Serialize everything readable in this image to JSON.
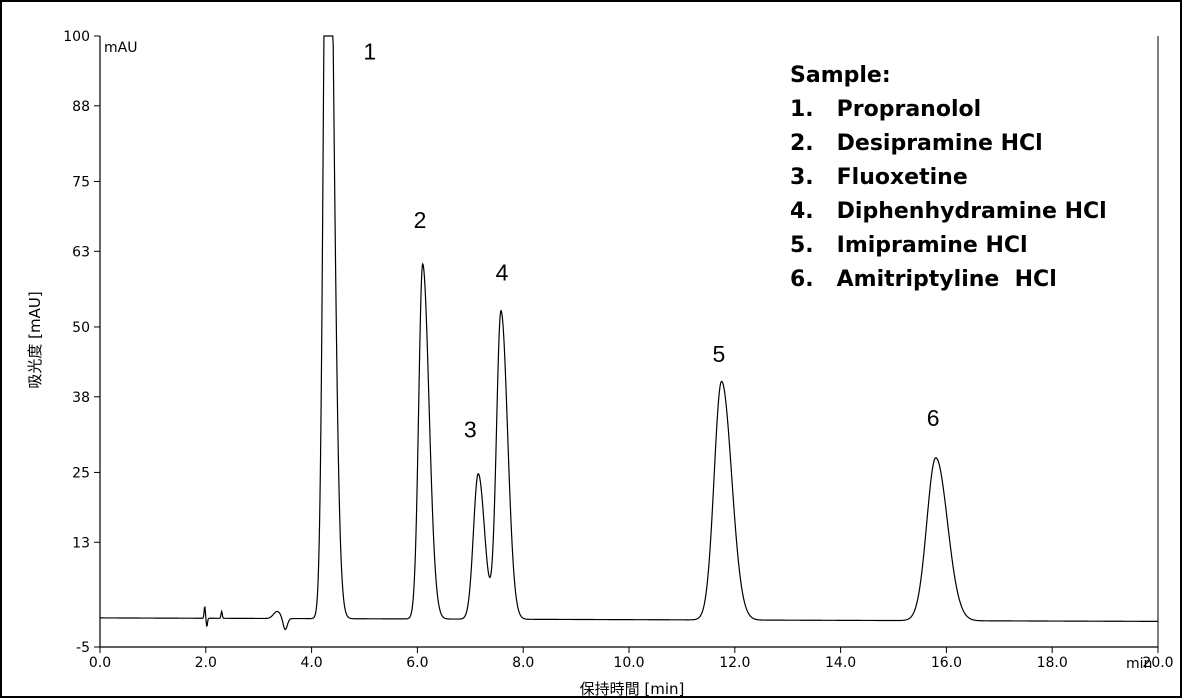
{
  "chart_data": {
    "type": "line",
    "xlabel": "保持時間 [min]",
    "ylabel": "吸光度 [mAU]",
    "x_unit": "min",
    "y_unit": "mAU",
    "xlim": [
      0,
      20
    ],
    "ylim": [
      -5,
      100
    ],
    "xticks": [
      "0.0",
      "2.0",
      "4.0",
      "6.0",
      "8.0",
      "10.0",
      "12.0",
      "14.0",
      "16.0",
      "18.0",
      "20.0"
    ],
    "yticks": [
      "-5",
      "13",
      "25",
      "38",
      "50",
      "63",
      "75",
      "88",
      "100"
    ],
    "ytick_values": [
      -5,
      13,
      25,
      38,
      50,
      63,
      75,
      88,
      100
    ],
    "grid": false,
    "baseline": 0,
    "series": [
      {
        "peaks": [
          {
            "label": "1",
            "rt": 4.3,
            "height": 160,
            "width": 0.07,
            "tail": 0.04
          },
          {
            "label": "2",
            "rt": 6.1,
            "height": 61,
            "width": 0.075,
            "tail": 0.045
          },
          {
            "label": "3",
            "rt": 7.15,
            "height": 25,
            "width": 0.09,
            "tail": 0.03
          },
          {
            "label": "4",
            "rt": 7.58,
            "height": 53,
            "width": 0.085,
            "tail": 0.04
          },
          {
            "label": "5",
            "rt": 11.75,
            "height": 41,
            "width": 0.14,
            "tail": 0.05
          },
          {
            "label": "6",
            "rt": 15.8,
            "height": 28,
            "width": 0.17,
            "tail": 0.05
          }
        ]
      }
    ],
    "peak_labels": [
      {
        "text": "1",
        "rt": 5.1,
        "y": 96
      },
      {
        "text": "2",
        "rt": 6.05,
        "y": 67
      },
      {
        "text": "3",
        "rt": 7.0,
        "y": 31
      },
      {
        "text": "4",
        "rt": 7.6,
        "y": 58
      },
      {
        "text": "5",
        "rt": 11.7,
        "y": 44
      },
      {
        "text": "6",
        "rt": 15.75,
        "y": 33
      }
    ],
    "legend": {
      "position": "top-right",
      "title": "Sample:",
      "items": [
        "1.   Propranolol",
        "2.   Desipramine HCl",
        "3.   Fluoxetine",
        "4.   Diphenhydramine HCl",
        "5.   Imipramine HCl",
        "6.   Amitriptyline  HCl"
      ]
    }
  }
}
